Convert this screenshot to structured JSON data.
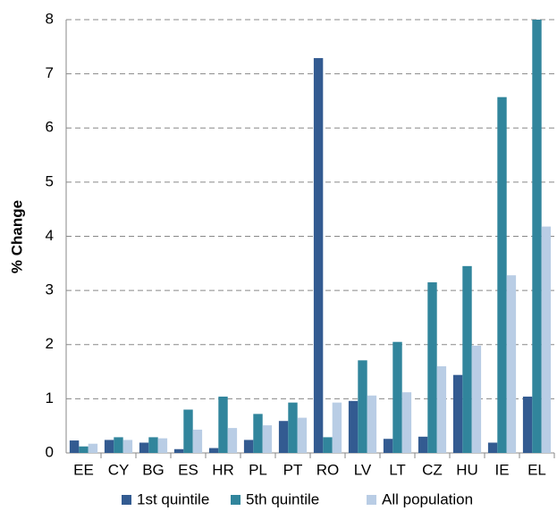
{
  "chart_data": {
    "type": "bar",
    "ylabel": "% Change",
    "categories": [
      "EE",
      "CY",
      "BG",
      "ES",
      "HR",
      "PL",
      "PT",
      "RO",
      "LV",
      "LT",
      "CZ",
      "HU",
      "IE",
      "EL"
    ],
    "series": [
      {
        "name": "1st quintile",
        "color": "#335b91",
        "values": [
          0.23,
          0.24,
          0.19,
          0.07,
          0.09,
          0.24,
          0.59,
          7.29,
          0.96,
          0.26,
          0.3,
          1.44,
          0.19,
          1.04
        ]
      },
      {
        "name": "5th quintile",
        "color": "#31859c",
        "values": [
          0.12,
          0.29,
          0.29,
          0.8,
          1.04,
          0.72,
          0.93,
          0.29,
          1.71,
          2.05,
          3.15,
          3.45,
          6.57,
          8.0
        ]
      },
      {
        "name": "All population",
        "color": "#b9cde5",
        "values": [
          0.17,
          0.24,
          0.27,
          0.43,
          0.46,
          0.51,
          0.65,
          0.93,
          1.06,
          1.12,
          1.6,
          1.98,
          3.28,
          4.18
        ]
      }
    ],
    "ylim": [
      0,
      8
    ],
    "yticks": [
      0,
      1,
      2,
      3,
      4,
      5,
      6,
      7,
      8
    ],
    "grid": true,
    "legend": "bottom"
  }
}
